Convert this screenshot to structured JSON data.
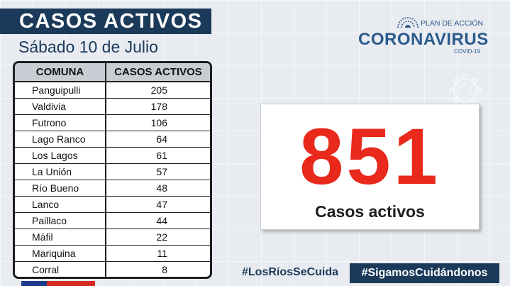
{
  "header": {
    "title": "CASOS ACTIVOS",
    "date": "Sábado 10 de Julio"
  },
  "logo": {
    "plan": "PLAN DE ACCIÓN",
    "name": "CORONAVIRUS",
    "sub": "COVID-19"
  },
  "table": {
    "headers": [
      "COMUNA",
      "CASOS ACTIVOS"
    ],
    "rows": [
      {
        "comuna": "Panguipulli",
        "casos": "205"
      },
      {
        "comuna": "Valdivia",
        "casos": "178"
      },
      {
        "comuna": "Futrono",
        "casos": "106"
      },
      {
        "comuna": "Lago Ranco",
        "casos": "64"
      },
      {
        "comuna": "Los Lagos",
        "casos": "61"
      },
      {
        "comuna": "La Unión",
        "casos": "57"
      },
      {
        "comuna": "Río Bueno",
        "casos": "48"
      },
      {
        "comuna": "Lanco",
        "casos": "47"
      },
      {
        "comuna": "Paillaco",
        "casos": "44"
      },
      {
        "comuna": "Máfil",
        "casos": "22"
      },
      {
        "comuna": "Mariquina",
        "casos": "11"
      },
      {
        "comuna": "Corral",
        "casos": "8"
      }
    ]
  },
  "summary": {
    "total": "851",
    "label": "Casos activos"
  },
  "footer": {
    "hashtag1": "#LosRíosSeCuida",
    "hashtag2": "#SigamosCuidándonos"
  },
  "colors": {
    "navy": "#1b3a5a",
    "red": "#e8291c",
    "logo_blue": "#2c5a8c"
  },
  "icons": [
    "virus-icon"
  ]
}
